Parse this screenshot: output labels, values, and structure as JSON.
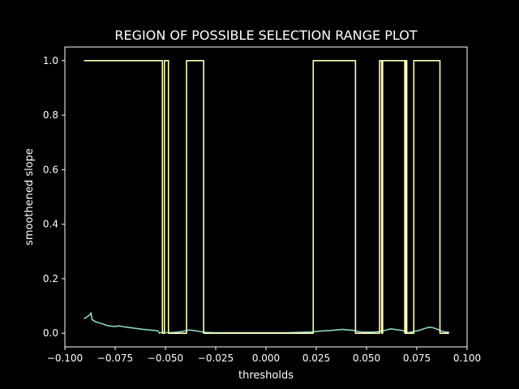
{
  "chart_data": {
    "type": "line",
    "title": "REGION OF POSSIBLE SELECTION RANGE PLOT",
    "xlabel": "thresholds",
    "ylabel": "smoothened slope",
    "xlim": [
      -0.1,
      0.1
    ],
    "ylim": [
      -0.05,
      1.05
    ],
    "xticks": [
      -0.1,
      -0.075,
      -0.05,
      -0.025,
      0.0,
      0.025,
      0.05,
      0.075,
      0.1
    ],
    "xtick_labels": [
      "−0.100",
      "−0.075",
      "−0.050",
      "−0.025",
      "0.000",
      "0.025",
      "0.050",
      "0.075",
      "0.100"
    ],
    "yticks": [
      0.0,
      0.2,
      0.4,
      0.6,
      0.8,
      1.0
    ],
    "ytick_labels": [
      "0.0",
      "0.2",
      "0.4",
      "0.6",
      "0.8",
      "1.0"
    ],
    "grid": false,
    "legend": "none",
    "series": [
      {
        "color": "#8dd3c7",
        "points": [
          [
            -0.0905,
            0.053
          ],
          [
            -0.089,
            0.06
          ],
          [
            -0.0875,
            0.068
          ],
          [
            -0.087,
            0.075
          ],
          [
            -0.0865,
            0.05
          ],
          [
            -0.085,
            0.043
          ],
          [
            -0.083,
            0.038
          ],
          [
            -0.081,
            0.034
          ],
          [
            -0.079,
            0.028
          ],
          [
            -0.077,
            0.026
          ],
          [
            -0.075,
            0.025
          ],
          [
            -0.073,
            0.027
          ],
          [
            -0.071,
            0.024
          ],
          [
            -0.069,
            0.022
          ],
          [
            -0.067,
            0.02
          ],
          [
            -0.065,
            0.018
          ],
          [
            -0.063,
            0.016
          ],
          [
            -0.061,
            0.014
          ],
          [
            -0.059,
            0.013
          ],
          [
            -0.057,
            0.011
          ],
          [
            -0.055,
            0.01
          ],
          [
            -0.0535,
            0.008
          ],
          [
            -0.053,
            0.0
          ],
          [
            -0.052,
            0.003
          ],
          [
            -0.05,
            0.002
          ],
          [
            -0.048,
            0.002
          ],
          [
            -0.046,
            0.003
          ],
          [
            -0.044,
            0.004
          ],
          [
            -0.042,
            0.006
          ],
          [
            -0.04,
            0.009
          ],
          [
            -0.038,
            0.012
          ],
          [
            -0.036,
            0.01
          ],
          [
            -0.034,
            0.008
          ],
          [
            -0.032,
            0.005
          ],
          [
            -0.03,
            0.003
          ],
          [
            -0.025,
            0.002
          ],
          [
            -0.02,
            0.002
          ],
          [
            -0.015,
            0.002
          ],
          [
            -0.01,
            0.002
          ],
          [
            -0.005,
            0.002
          ],
          [
            0.0,
            0.002
          ],
          [
            0.005,
            0.002
          ],
          [
            0.01,
            0.002
          ],
          [
            0.015,
            0.003
          ],
          [
            0.02,
            0.004
          ],
          [
            0.023,
            0.005
          ],
          [
            0.026,
            0.007
          ],
          [
            0.029,
            0.009
          ],
          [
            0.032,
            0.01
          ],
          [
            0.035,
            0.012
          ],
          [
            0.038,
            0.014
          ],
          [
            0.041,
            0.012
          ],
          [
            0.044,
            0.01
          ],
          [
            0.046,
            0.006
          ],
          [
            0.048,
            0.004
          ],
          [
            0.05,
            0.004
          ],
          [
            0.052,
            0.004
          ],
          [
            0.054,
            0.005
          ],
          [
            0.056,
            0.006
          ],
          [
            0.058,
            0.008
          ],
          [
            0.06,
            0.012
          ],
          [
            0.062,
            0.016
          ],
          [
            0.064,
            0.014
          ],
          [
            0.066,
            0.012
          ],
          [
            0.068,
            0.01
          ],
          [
            0.0695,
            0.006
          ],
          [
            0.0705,
            0.002
          ],
          [
            0.072,
            0.004
          ],
          [
            0.074,
            0.007
          ],
          [
            0.076,
            0.01
          ],
          [
            0.078,
            0.015
          ],
          [
            0.08,
            0.02
          ],
          [
            0.082,
            0.022
          ],
          [
            0.084,
            0.018
          ],
          [
            0.086,
            0.012
          ],
          [
            0.088,
            0.006
          ],
          [
            0.09,
            0.004
          ],
          [
            0.091,
            0.004
          ]
        ]
      },
      {
        "color": "#ffffb3",
        "points": [
          [
            -0.0905,
            1.0
          ],
          [
            -0.0515,
            1.0
          ],
          [
            -0.0515,
            0.0
          ],
          [
            -0.0505,
            0.0
          ],
          [
            -0.0505,
            1.0
          ],
          [
            -0.0485,
            1.0
          ],
          [
            -0.0485,
            0.0
          ],
          [
            -0.0395,
            0.0
          ],
          [
            -0.0395,
            1.0
          ],
          [
            -0.031,
            1.0
          ],
          [
            -0.031,
            0.0
          ],
          [
            0.0235,
            0.0
          ],
          [
            0.0235,
            1.0
          ],
          [
            0.0445,
            1.0
          ],
          [
            0.0445,
            0.0
          ],
          [
            0.0565,
            0.0
          ],
          [
            0.0565,
            1.0
          ],
          [
            0.0575,
            1.0
          ],
          [
            0.0575,
            0.0
          ],
          [
            0.058,
            0.0
          ],
          [
            0.058,
            1.0
          ],
          [
            0.069,
            1.0
          ],
          [
            0.069,
            0.0
          ],
          [
            0.0695,
            0.0
          ],
          [
            0.0695,
            1.0
          ],
          [
            0.07,
            1.0
          ],
          [
            0.07,
            0.0
          ],
          [
            0.0735,
            0.0
          ],
          [
            0.0735,
            1.0
          ],
          [
            0.0865,
            1.0
          ],
          [
            0.0865,
            0.0
          ],
          [
            0.091,
            0.0
          ]
        ]
      }
    ]
  }
}
